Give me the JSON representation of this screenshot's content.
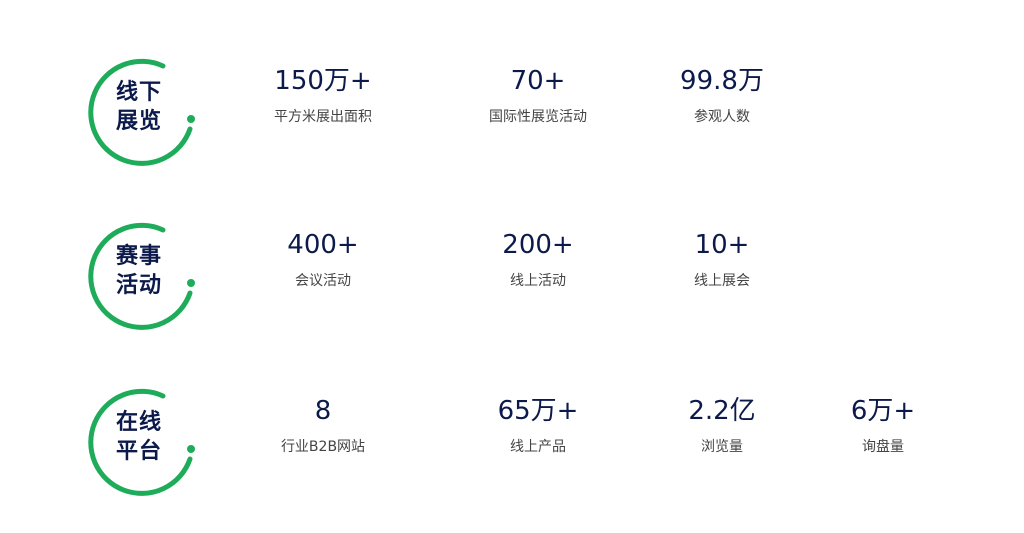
{
  "colors": {
    "accent": "#1fac5a",
    "text": "#0c1a4b"
  },
  "rows": [
    {
      "title_line1": "线下",
      "title_line2": "展览",
      "stats": [
        {
          "value": "150万+",
          "label": "平方米展出面积"
        },
        {
          "value": "70+",
          "label": "国际性展览活动"
        },
        {
          "value": "99.8万",
          "label": "参观人数"
        }
      ]
    },
    {
      "title_line1": "赛事",
      "title_line2": "活动",
      "stats": [
        {
          "value": "400+",
          "label": "会议活动"
        },
        {
          "value": "200+",
          "label": "线上活动"
        },
        {
          "value": "10+",
          "label": "线上展会"
        }
      ]
    },
    {
      "title_line1": "在线",
      "title_line2": "平台",
      "stats": [
        {
          "value": "8",
          "label": "行业B2B网站"
        },
        {
          "value": "65万+",
          "label": "线上产品"
        },
        {
          "value": "2.2亿",
          "label": "浏览量"
        },
        {
          "value": "6万+",
          "label": "询盘量"
        }
      ]
    }
  ]
}
